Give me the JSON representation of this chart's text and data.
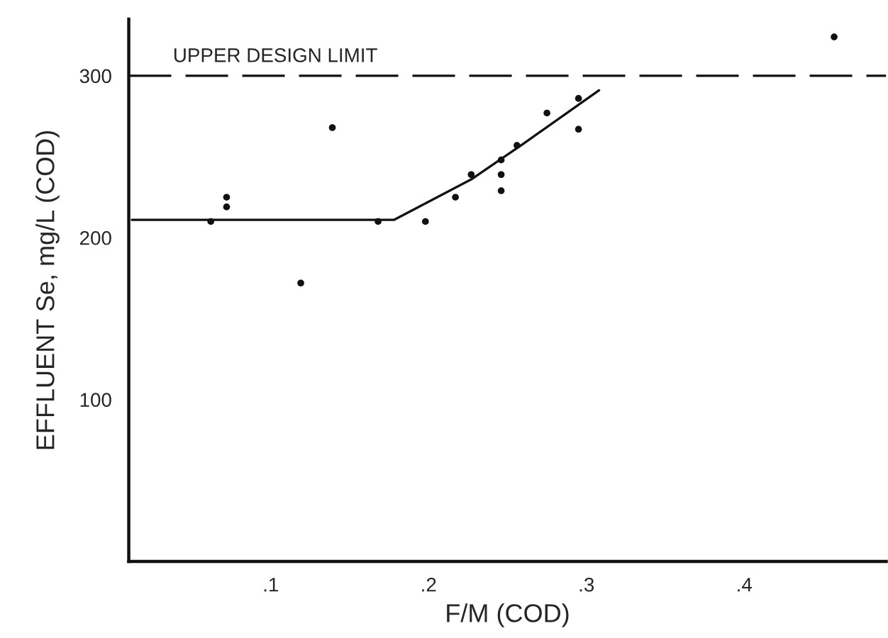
{
  "chart_data": {
    "type": "scatter",
    "xlabel": "F/M (COD)",
    "ylabel": "EFFLUENT Se, mg/L (COD)",
    "xlim": [
      0.01,
      0.49
    ],
    "ylim": [
      0,
      335
    ],
    "xticks": [
      {
        "value": 0.1,
        "label": ".1"
      },
      {
        "value": 0.2,
        "label": ".2"
      },
      {
        "value": 0.3,
        "label": ".3"
      },
      {
        "value": 0.4,
        "label": ".4"
      }
    ],
    "yticks": [
      100,
      200,
      300
    ],
    "grid": false,
    "series": [
      {
        "marker": "circle",
        "color": "#111111",
        "x": [
          0.062,
          0.072,
          0.072,
          0.119,
          0.139,
          0.168,
          0.198,
          0.217,
          0.227,
          0.246,
          0.246,
          0.246,
          0.256,
          0.275,
          0.295,
          0.295,
          0.457
        ],
        "values": [
          210,
          225,
          219,
          172,
          268,
          210,
          210,
          225,
          239,
          248,
          239,
          229,
          257,
          277,
          286,
          267,
          324
        ]
      },
      {
        "type": "line",
        "marker": "none",
        "color": "#111111",
        "line_style": "solid",
        "x": [
          0.012,
          0.178,
          0.227,
          0.26,
          0.308
        ],
        "values": [
          211,
          211,
          236,
          258,
          291
        ]
      }
    ],
    "ref_lines": [
      {
        "axis": "y",
        "value": 300,
        "label": "UPPER DESIGN LIMIT",
        "color": "#111111",
        "line_style": "dashed"
      }
    ]
  }
}
